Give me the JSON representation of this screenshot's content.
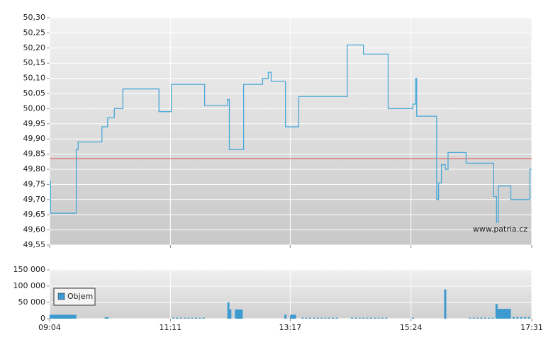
{
  "chart_data": [
    {
      "type": "line",
      "step": true,
      "watermark": "www.patria.cz",
      "ylim": [
        49.55,
        50.3
      ],
      "yticks": [
        {
          "value": 49.55,
          "label": "49,55"
        },
        {
          "value": 49.6,
          "label": "49,60"
        },
        {
          "value": 49.65,
          "label": "49,65"
        },
        {
          "value": 49.7,
          "label": "49,70"
        },
        {
          "value": 49.75,
          "label": "49,75"
        },
        {
          "value": 49.8,
          "label": "49,80"
        },
        {
          "value": 49.85,
          "label": "49,85"
        },
        {
          "value": 49.9,
          "label": "49,90"
        },
        {
          "value": 49.95,
          "label": "49,95"
        },
        {
          "value": 50.0,
          "label": "50,00"
        },
        {
          "value": 50.05,
          "label": "50,05"
        },
        {
          "value": 50.1,
          "label": "50,10"
        },
        {
          "value": 50.15,
          "label": "50,15"
        },
        {
          "value": 50.2,
          "label": "50,20"
        },
        {
          "value": 50.25,
          "label": "50,25"
        },
        {
          "value": 50.3,
          "label": "50,30"
        }
      ],
      "xlim": [
        "09:04",
        "17:31"
      ],
      "grid": true,
      "reference_line": {
        "value": 49.835,
        "color": "#e05050"
      },
      "series": [
        {
          "color": "#4aa8d8",
          "x": [
            "09:04",
            "09:05",
            "09:32",
            "09:34",
            "09:59",
            "10:05",
            "10:12",
            "10:21",
            "10:59",
            "11:12",
            "11:47",
            "12:11",
            "12:13",
            "12:28",
            "12:48",
            "12:54",
            "12:57",
            "13:12",
            "13:26",
            "14:17",
            "14:34",
            "15:00",
            "15:26",
            "15:29",
            "15:30",
            "15:51",
            "15:53",
            "15:56",
            "16:00",
            "16:03",
            "16:22",
            "16:51",
            "16:54",
            "16:56",
            "17:09",
            "17:29"
          ],
          "values": [
            49.76,
            49.655,
            49.865,
            49.89,
            49.94,
            49.97,
            50.0,
            50.065,
            49.99,
            50.08,
            50.01,
            50.03,
            49.865,
            50.08,
            50.1,
            50.12,
            50.09,
            49.94,
            50.04,
            50.21,
            50.18,
            50.0,
            50.015,
            50.1,
            49.975,
            49.7,
            49.755,
            49.815,
            49.8,
            49.855,
            49.82,
            49.71,
            49.625,
            49.745,
            49.7,
            49.8
          ]
        }
      ]
    },
    {
      "type": "bar",
      "ylim": [
        0,
        150000
      ],
      "yticks": [
        0,
        {
          "value": 50000,
          "label": "50 000"
        },
        {
          "value": 100000,
          "label": "100 000"
        },
        {
          "value": 150000,
          "label": "150 000"
        }
      ],
      "xlim": [
        "09:04",
        "17:31"
      ],
      "xticks": [
        "09:04",
        "11:11",
        "13:17",
        "15:24",
        "17:31"
      ],
      "grid": true,
      "legend": "top-left",
      "series": [
        {
          "name": "Objem",
          "color": "#3d9ad1",
          "x": [
            "09:05",
            "09:07",
            "09:09",
            "09:11",
            "09:13",
            "09:15",
            "09:17",
            "09:19",
            "09:21",
            "09:23",
            "09:25",
            "09:27",
            "09:29",
            "09:31",
            "10:03",
            "10:05",
            "11:14",
            "11:18",
            "11:22",
            "11:26",
            "11:30",
            "11:34",
            "11:38",
            "11:42",
            "11:46",
            "12:12",
            "12:14",
            "12:20",
            "12:22",
            "12:24",
            "12:26",
            "13:12",
            "13:18",
            "13:20",
            "13:22",
            "13:30",
            "13:34",
            "13:38",
            "13:42",
            "13:46",
            "13:50",
            "13:54",
            "13:58",
            "14:02",
            "14:06",
            "14:22",
            "14:26",
            "14:30",
            "14:34",
            "14:38",
            "14:42",
            "14:46",
            "14:50",
            "14:54",
            "14:58",
            "15:26",
            "16:00",
            "16:26",
            "16:30",
            "16:34",
            "16:38",
            "16:42",
            "16:46",
            "16:50",
            "16:54",
            "16:56",
            "16:58",
            "17:00",
            "17:02",
            "17:04",
            "17:06",
            "17:08",
            "17:12",
            "17:16",
            "17:20",
            "17:24",
            "17:28"
          ],
          "values": [
            12000,
            12000,
            12000,
            12000,
            12000,
            12000,
            12000,
            12000,
            12000,
            12000,
            12000,
            12000,
            12000,
            12000,
            4000,
            4000,
            3000,
            3000,
            3000,
            3000,
            3000,
            3000,
            3000,
            3000,
            3000,
            50000,
            28000,
            28000,
            28000,
            28000,
            28000,
            12000,
            12000,
            12000,
            12000,
            3000,
            3000,
            3000,
            3000,
            3000,
            3000,
            3000,
            3000,
            3000,
            3000,
            3000,
            3000,
            3000,
            3000,
            3000,
            3000,
            3000,
            3000,
            3000,
            3000,
            3000,
            90000,
            3000,
            3000,
            3000,
            3000,
            3000,
            3000,
            3000,
            45000,
            30000,
            30000,
            30000,
            30000,
            30000,
            30000,
            30000,
            5000,
            5000,
            5000,
            5000,
            5000
          ]
        }
      ]
    }
  ]
}
